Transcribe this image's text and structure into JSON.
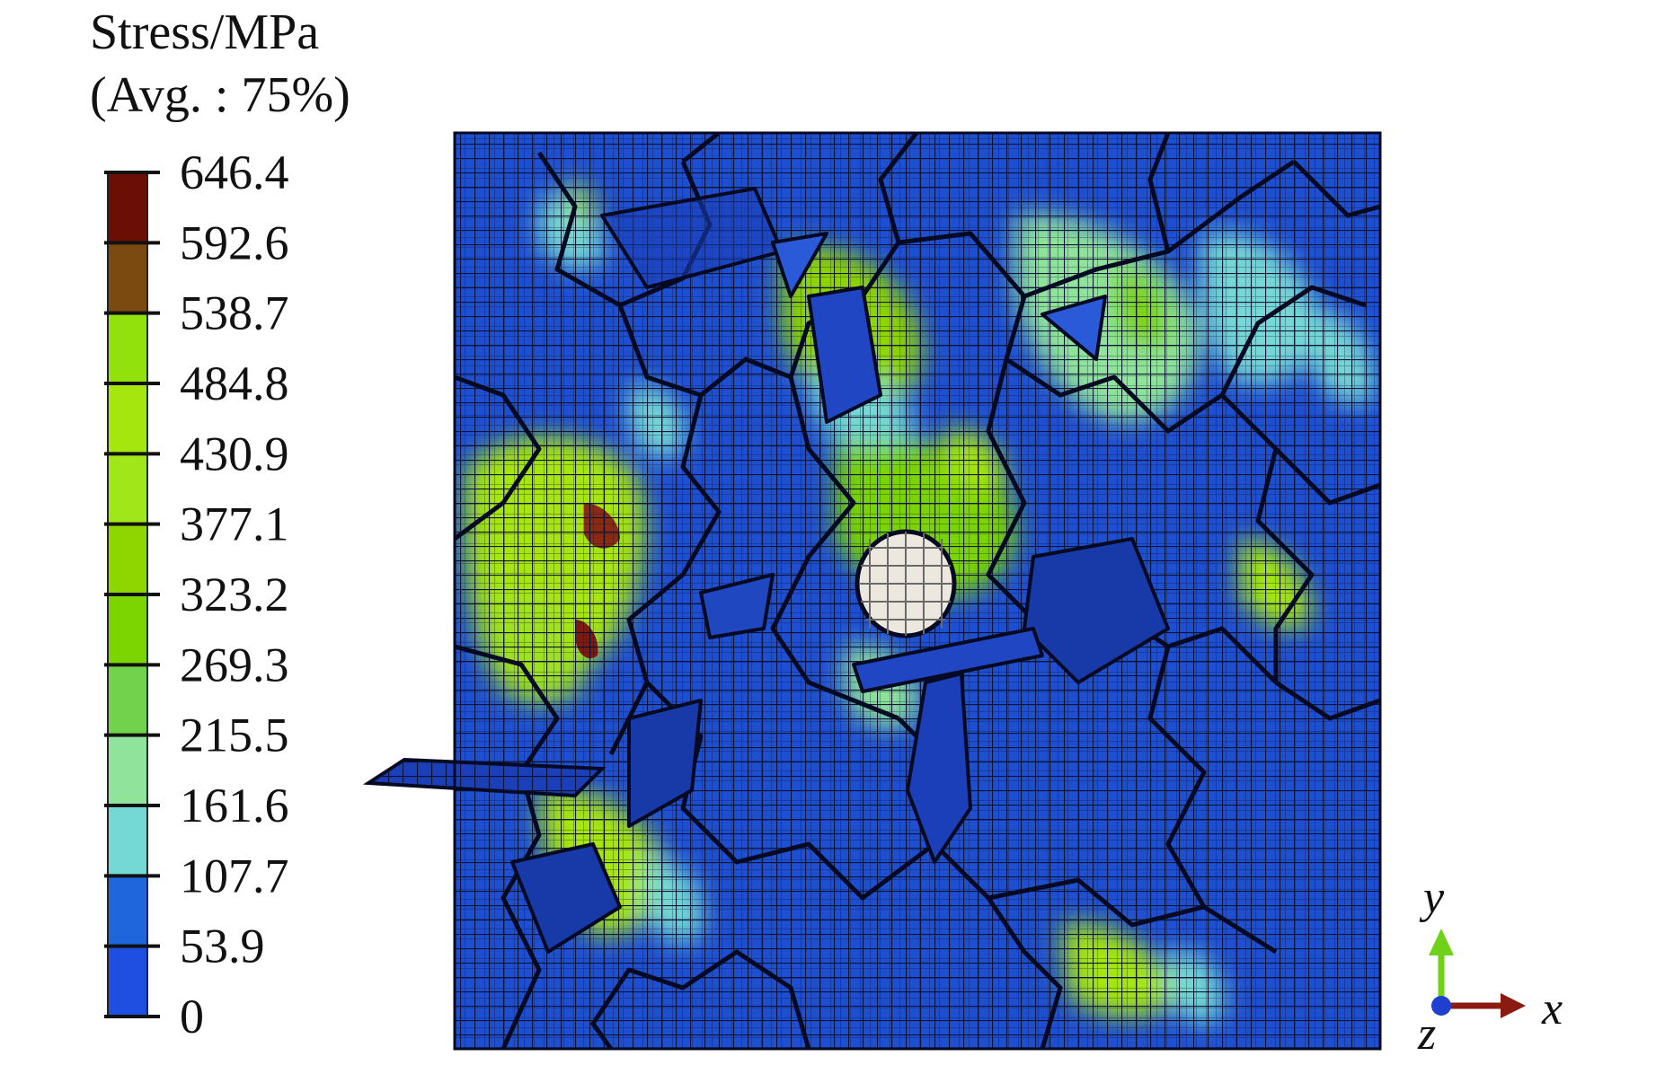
{
  "legend": {
    "title": "Stress/MPa",
    "subtitle": "(Avg. : 75%)",
    "ticks": [
      "646.4",
      "592.6",
      "538.7",
      "484.8",
      "430.9",
      "377.1",
      "323.2",
      "269.3",
      "215.5",
      "161.6",
      "107.7",
      "53.9",
      "0"
    ],
    "band_colors": [
      "#6b0f06",
      "#7a4a10",
      "#93e10c",
      "#a4e60e",
      "#a0e618",
      "#8fd600",
      "#7cd400",
      "#72d24c",
      "#8fe39a",
      "#74d8d4",
      "#1f66dd",
      "#1f4fe0"
    ]
  },
  "triad": {
    "x_label": "x",
    "y_label": "y",
    "z_label": "z",
    "x_color": "#8b1a10",
    "y_color": "#6fd11a",
    "z_color": "#1f3fd0"
  },
  "model": {
    "base_color": "#1f4fd1",
    "mesh_color": "#0a1030",
    "inclusion_color": "#ece8e0",
    "high_stress_color": "#7a1a10"
  }
}
